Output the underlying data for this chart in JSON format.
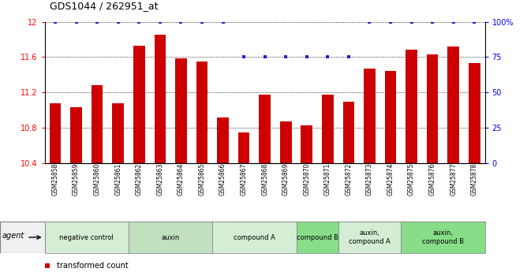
{
  "title": "GDS1044 / 262951_at",
  "samples": [
    "GSM25858",
    "GSM25859",
    "GSM25860",
    "GSM25861",
    "GSM25862",
    "GSM25863",
    "GSM25864",
    "GSM25865",
    "GSM25866",
    "GSM25867",
    "GSM25868",
    "GSM25869",
    "GSM25870",
    "GSM25871",
    "GSM25872",
    "GSM25873",
    "GSM25874",
    "GSM25875",
    "GSM25876",
    "GSM25877",
    "GSM25878"
  ],
  "bar_values": [
    11.08,
    11.03,
    11.28,
    11.08,
    11.73,
    11.85,
    11.59,
    11.55,
    10.92,
    10.75,
    11.18,
    10.87,
    10.83,
    11.18,
    11.1,
    11.47,
    11.44,
    11.68,
    11.63,
    11.72,
    11.53
  ],
  "percentile_values": [
    100,
    100,
    100,
    100,
    100,
    100,
    100,
    100,
    100,
    75,
    75,
    75,
    75,
    75,
    75,
    100,
    100,
    100,
    100,
    100,
    100
  ],
  "bar_color": "#cc0000",
  "percentile_color": "#2222cc",
  "ylim_left": [
    10.4,
    12.0
  ],
  "ylim_right": [
    0,
    100
  ],
  "yticks_left": [
    10.4,
    10.8,
    11.2,
    11.6,
    12.0
  ],
  "ytick_left_labels": [
    "10.4",
    "10.8",
    "11.2",
    "11.6",
    "12"
  ],
  "yticks_right": [
    0,
    25,
    50,
    75,
    100
  ],
  "ytick_right_labels": [
    "0",
    "25",
    "50",
    "75",
    "100%"
  ],
  "grid_lines": [
    10.8,
    11.2,
    11.6
  ],
  "groups": [
    {
      "label": "negative control",
      "start": 0,
      "end": 4,
      "color": "#d4edd4"
    },
    {
      "label": "auxin",
      "start": 4,
      "end": 8,
      "color": "#c0e0c0"
    },
    {
      "label": "compound A",
      "start": 8,
      "end": 12,
      "color": "#d4edd4"
    },
    {
      "label": "compound B",
      "start": 12,
      "end": 14,
      "color": "#88dd88"
    },
    {
      "label": "auxin,\ncompound A",
      "start": 14,
      "end": 17,
      "color": "#d4edd4"
    },
    {
      "label": "auxin,\ncompound B",
      "start": 17,
      "end": 21,
      "color": "#88dd88"
    }
  ],
  "agent_label": "agent",
  "bg_color": "#ffffff"
}
